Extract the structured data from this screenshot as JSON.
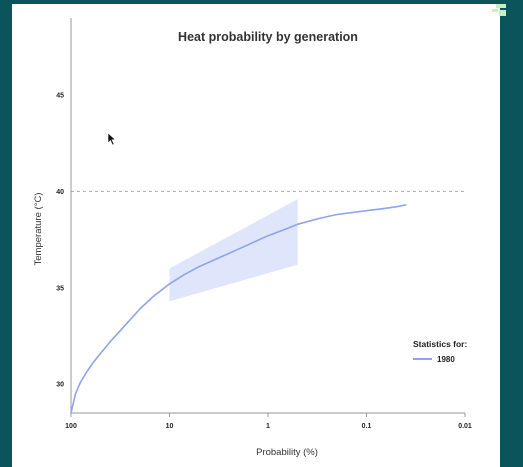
{
  "chart_data": {
    "type": "line",
    "title": "Heat probability by generation",
    "xlabel": "Probability (%)",
    "ylabel": "Temperature (°C)",
    "x_scale": "log-reversed",
    "xlim": [
      100,
      0.01
    ],
    "ylim": [
      28.5,
      49
    ],
    "x_ticks": [
      100,
      10,
      1,
      0.1,
      0.01
    ],
    "x_tick_labels": [
      "100",
      "10",
      "1",
      "0.1",
      "0.01"
    ],
    "y_ticks": [
      30,
      35,
      40,
      45
    ],
    "y_tick_labels": [
      "30",
      "35",
      "40",
      "45"
    ],
    "grid": false,
    "threshold_line": {
      "y": 40,
      "style": "dashed",
      "color": "#aaaaaa"
    },
    "legend": {
      "title": "Statistics for:",
      "placement": "bottom-right"
    },
    "series": [
      {
        "name": "1980",
        "color": "#8ea3ea",
        "x": [
          100,
          90,
          80,
          70,
          60,
          50,
          40,
          30,
          20,
          15,
          10,
          7,
          5,
          3,
          2,
          1,
          0.7,
          0.5,
          0.3,
          0.2,
          0.1,
          0.07,
          0.05,
          0.04
        ],
        "y": [
          28.5,
          29.5,
          30.1,
          30.6,
          31.1,
          31.6,
          32.2,
          32.9,
          33.9,
          34.5,
          35.2,
          35.7,
          36.1,
          36.6,
          37.0,
          37.7,
          38.0,
          38.3,
          38.6,
          38.8,
          39.0,
          39.1,
          39.2,
          39.3
        ],
        "band": {
          "color": "#dfe6fb",
          "x": [
            10,
            0.5
          ],
          "lower": [
            34.3,
            36.2
          ],
          "upper": [
            36.0,
            39.6
          ]
        }
      }
    ]
  }
}
